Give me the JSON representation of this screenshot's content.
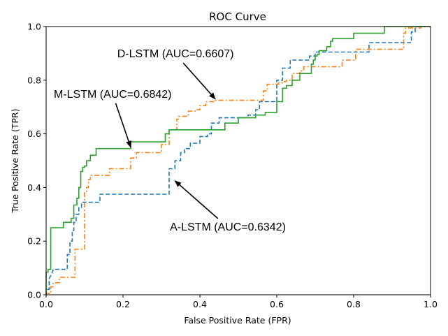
{
  "chart_data": {
    "type": "line",
    "title": "ROC Curve",
    "xlabel": "False Positive Rate (FPR)",
    "ylabel": "True Positive Rate (TPR)",
    "xlim": [
      0.0,
      1.0
    ],
    "ylim": [
      0.0,
      1.0
    ],
    "xticks": [
      0.0,
      0.2,
      0.4,
      0.6,
      0.8,
      1.0
    ],
    "yticks": [
      0.0,
      0.2,
      0.4,
      0.6,
      0.8,
      1.0
    ],
    "xtick_labels": [
      "0.0",
      "0.2",
      "0.4",
      "0.6",
      "0.8",
      "1.0"
    ],
    "ytick_labels": [
      "0.0",
      "0.2",
      "0.4",
      "0.6",
      "0.8",
      "1.0"
    ],
    "grid": false,
    "series": [
      {
        "name": "A-LSTM",
        "auc": 0.6342,
        "color": "#1f77b4",
        "style": "dashed",
        "x": [
          0.0,
          0.0,
          0.008,
          0.008,
          0.018,
          0.018,
          0.055,
          0.055,
          0.062,
          0.062,
          0.068,
          0.068,
          0.072,
          0.072,
          0.078,
          0.078,
          0.085,
          0.085,
          0.092,
          0.092,
          0.14,
          0.14,
          0.21,
          0.21,
          0.3,
          0.32,
          0.32,
          0.335,
          0.335,
          0.35,
          0.35,
          0.36,
          0.36,
          0.375,
          0.375,
          0.4,
          0.4,
          0.42,
          0.42,
          0.43,
          0.43,
          0.45,
          0.45,
          0.48,
          0.48,
          0.5,
          0.5,
          0.525,
          0.525,
          0.545,
          0.545,
          0.555,
          0.555,
          0.575,
          0.575,
          0.6,
          0.6,
          0.615,
          0.615,
          0.635,
          0.635,
          0.65,
          0.65,
          0.685,
          0.685,
          0.7,
          0.7,
          0.71,
          0.71,
          0.78,
          0.78,
          0.84,
          0.84,
          0.94,
          0.94,
          0.95,
          0.95,
          0.96,
          0.96,
          1.0
        ],
        "y": [
          0.0,
          0.02,
          0.02,
          0.06,
          0.09,
          0.095,
          0.095,
          0.15,
          0.15,
          0.2,
          0.2,
          0.24,
          0.24,
          0.27,
          0.27,
          0.3,
          0.3,
          0.325,
          0.325,
          0.345,
          0.345,
          0.375,
          0.375,
          0.375,
          0.375,
          0.375,
          0.47,
          0.47,
          0.5,
          0.5,
          0.53,
          0.53,
          0.545,
          0.545,
          0.565,
          0.565,
          0.59,
          0.59,
          0.6,
          0.6,
          0.64,
          0.64,
          0.66,
          0.66,
          0.66,
          0.66,
          0.66,
          0.66,
          0.67,
          0.67,
          0.69,
          0.69,
          0.72,
          0.72,
          0.72,
          0.72,
          0.8,
          0.8,
          0.845,
          0.845,
          0.875,
          0.875,
          0.875,
          0.875,
          0.89,
          0.89,
          0.905,
          0.905,
          0.905,
          0.905,
          0.905,
          0.905,
          0.94,
          0.94,
          0.94,
          0.94,
          0.98,
          0.98,
          1.0,
          1.0
        ]
      },
      {
        "name": "D-LSTM",
        "auc": 0.6607,
        "color": "#ff7f0e",
        "style": "dashdot",
        "x": [
          0.0,
          0.0,
          0.012,
          0.012,
          0.018,
          0.018,
          0.035,
          0.035,
          0.075,
          0.075,
          0.095,
          0.095,
          0.1,
          0.1,
          0.105,
          0.105,
          0.11,
          0.11,
          0.115,
          0.115,
          0.165,
          0.165,
          0.22,
          0.22,
          0.235,
          0.235,
          0.3,
          0.3,
          0.32,
          0.32,
          0.34,
          0.34,
          0.345,
          0.345,
          0.37,
          0.37,
          0.39,
          0.39,
          0.4,
          0.4,
          0.415,
          0.415,
          0.44,
          0.44,
          0.565,
          0.565,
          0.575,
          0.575,
          0.605,
          0.605,
          0.615,
          0.615,
          0.625,
          0.625,
          0.64,
          0.64,
          0.66,
          0.66,
          0.67,
          0.67,
          0.7,
          0.7,
          0.77,
          0.77,
          0.805,
          0.805,
          0.88,
          0.88,
          0.93,
          0.93,
          0.935,
          0.935,
          0.975,
          0.975,
          1.0
        ],
        "y": [
          0.0,
          0.005,
          0.005,
          0.03,
          0.03,
          0.045,
          0.045,
          0.065,
          0.065,
          0.17,
          0.17,
          0.17,
          0.17,
          0.38,
          0.38,
          0.4,
          0.4,
          0.43,
          0.43,
          0.445,
          0.445,
          0.47,
          0.47,
          0.51,
          0.51,
          0.53,
          0.53,
          0.56,
          0.56,
          0.615,
          0.615,
          0.655,
          0.655,
          0.665,
          0.665,
          0.685,
          0.685,
          0.69,
          0.69,
          0.705,
          0.705,
          0.72,
          0.72,
          0.725,
          0.725,
          0.76,
          0.76,
          0.785,
          0.785,
          0.79,
          0.79,
          0.795,
          0.795,
          0.8,
          0.8,
          0.825,
          0.825,
          0.835,
          0.835,
          0.85,
          0.85,
          0.85,
          0.85,
          0.875,
          0.875,
          0.915,
          0.915,
          0.915,
          0.915,
          0.975,
          0.975,
          0.995,
          0.995,
          1.0,
          1.0
        ]
      },
      {
        "name": "M-LSTM",
        "auc": 0.6842,
        "color": "#2ca02c",
        "style": "solid",
        "x": [
          0.0,
          0.0,
          0.005,
          0.005,
          0.012,
          0.012,
          0.045,
          0.045,
          0.065,
          0.065,
          0.072,
          0.072,
          0.08,
          0.08,
          0.085,
          0.085,
          0.09,
          0.09,
          0.095,
          0.095,
          0.1,
          0.1,
          0.105,
          0.105,
          0.11,
          0.11,
          0.115,
          0.115,
          0.125,
          0.125,
          0.13,
          0.13,
          0.22,
          0.22,
          0.245,
          0.245,
          0.31,
          0.31,
          0.32,
          0.32,
          0.36,
          0.36,
          0.465,
          0.465,
          0.5,
          0.5,
          0.53,
          0.53,
          0.545,
          0.545,
          0.57,
          0.57,
          0.6,
          0.6,
          0.615,
          0.615,
          0.625,
          0.625,
          0.64,
          0.64,
          0.66,
          0.66,
          0.69,
          0.69,
          0.695,
          0.695,
          0.7,
          0.7,
          0.705,
          0.705,
          0.71,
          0.71,
          0.73,
          0.73,
          0.74,
          0.74,
          0.745,
          0.745,
          0.8,
          0.8,
          0.88,
          0.88,
          1.0
        ],
        "y": [
          0.0,
          0.085,
          0.085,
          0.095,
          0.095,
          0.25,
          0.25,
          0.27,
          0.27,
          0.285,
          0.285,
          0.335,
          0.335,
          0.36,
          0.36,
          0.4,
          0.4,
          0.46,
          0.46,
          0.475,
          0.475,
          0.48,
          0.48,
          0.5,
          0.5,
          0.5,
          0.5,
          0.52,
          0.52,
          0.52,
          0.52,
          0.545,
          0.545,
          0.57,
          0.57,
          0.57,
          0.57,
          0.6,
          0.6,
          0.615,
          0.615,
          0.615,
          0.615,
          0.64,
          0.64,
          0.66,
          0.66,
          0.66,
          0.66,
          0.67,
          0.67,
          0.68,
          0.68,
          0.72,
          0.72,
          0.77,
          0.77,
          0.78,
          0.78,
          0.8,
          0.8,
          0.825,
          0.825,
          0.86,
          0.86,
          0.875,
          0.875,
          0.89,
          0.89,
          0.895,
          0.895,
          0.91,
          0.91,
          0.925,
          0.925,
          0.945,
          0.945,
          0.955,
          0.955,
          0.975,
          0.975,
          1.0,
          1.0
        ]
      }
    ],
    "annotations": [
      {
        "text": "D-LSTM (AUC=0.6607)",
        "xy": [
          0.44,
          0.73
        ],
        "xytext": [
          0.185,
          0.885
        ]
      },
      {
        "text": "M-LSTM (AUC=0.6842)",
        "xy": [
          0.22,
          0.55
        ],
        "xytext": [
          0.02,
          0.735
        ]
      },
      {
        "text": "A-LSTM (AUC=0.6342)",
        "xy": [
          0.335,
          0.425
        ],
        "xytext": [
          0.322,
          0.24
        ]
      }
    ]
  }
}
